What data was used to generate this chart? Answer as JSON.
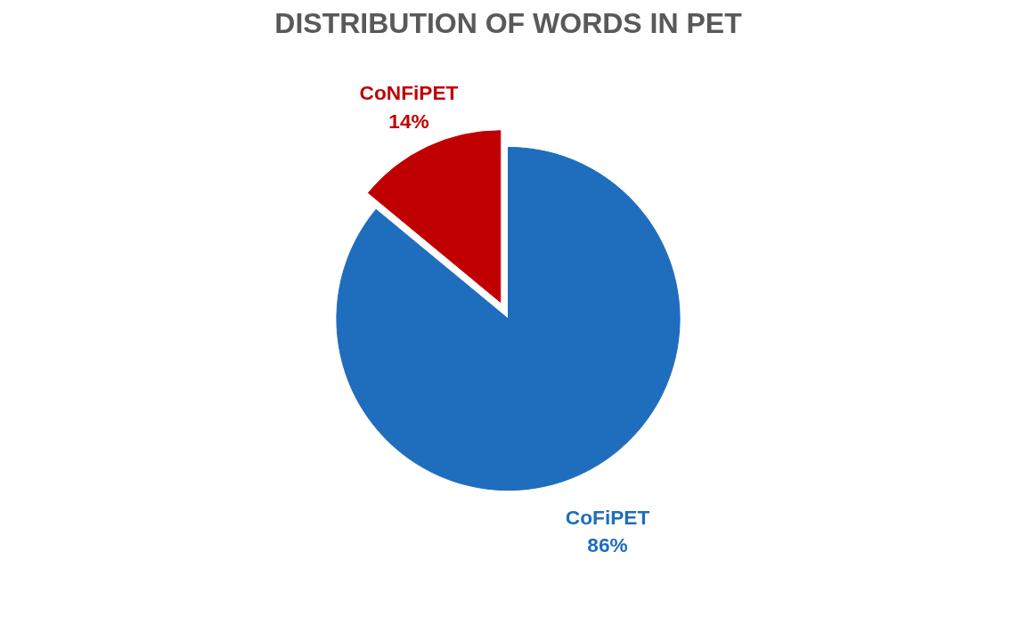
{
  "chart_data": {
    "type": "pie",
    "title": "DISTRIBUTION OF WORDS IN PET",
    "categories": [
      "CoNFiPET",
      "CoFiPET"
    ],
    "values": [
      14,
      86
    ],
    "colors": [
      "#c00000",
      "#1f6dbd"
    ],
    "value_labels": [
      "14%",
      "86%"
    ]
  }
}
